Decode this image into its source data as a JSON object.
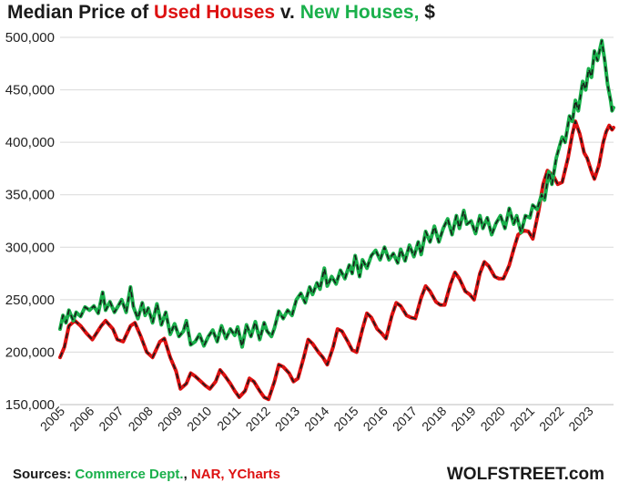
{
  "title": {
    "prefix": "Median Price of ",
    "used": "Used Houses",
    "mid": " v. ",
    "new": "New Houses,",
    "suffix": " $"
  },
  "footer": {
    "sources_label": "Sources: ",
    "source_1": "Commerce Dept.",
    "source_sep": ", ",
    "source_2": "NAR, YCharts",
    "brand": "WOLFSTREET.com"
  },
  "colors": {
    "used": "#dd1111",
    "new": "#1ab04b",
    "black": "#1a1a1a",
    "grid": "#d9d9d9"
  },
  "chart_data": {
    "type": "line",
    "title": "Median Price of Used Houses v. New Houses, $",
    "xlabel": "",
    "ylabel": "",
    "ylim": [
      150000,
      500000
    ],
    "xlim": [
      2005.0,
      2023.85
    ],
    "yticks": [
      150000,
      200000,
      250000,
      300000,
      350000,
      400000,
      450000,
      500000
    ],
    "ytick_labels": [
      "150,000",
      "200,000",
      "250,000",
      "300,000",
      "350,000",
      "400,000",
      "450,000",
      "500,000"
    ],
    "xticks": [
      "2005",
      "2006",
      "2007",
      "2008",
      "2009",
      "2010",
      "2011",
      "2012",
      "2013",
      "2014",
      "2015",
      "2016",
      "2017",
      "2018",
      "2019",
      "2020",
      "2021",
      "2022",
      "2023"
    ],
    "grid": "horizontal",
    "series": [
      {
        "name": "Used Houses",
        "color": "#dd1111",
        "points": [
          [
            2005.0,
            195000
          ],
          [
            2005.15,
            205000
          ],
          [
            2005.3,
            225000
          ],
          [
            2005.5,
            230000
          ],
          [
            2005.7,
            225000
          ],
          [
            2005.9,
            218000
          ],
          [
            2006.1,
            212000
          ],
          [
            2006.4,
            225000
          ],
          [
            2006.55,
            230000
          ],
          [
            2006.8,
            222000
          ],
          [
            2006.95,
            212000
          ],
          [
            2007.15,
            210000
          ],
          [
            2007.4,
            225000
          ],
          [
            2007.55,
            228000
          ],
          [
            2007.75,
            215000
          ],
          [
            2007.95,
            200000
          ],
          [
            2008.15,
            195000
          ],
          [
            2008.4,
            210000
          ],
          [
            2008.55,
            213000
          ],
          [
            2008.75,
            195000
          ],
          [
            2008.95,
            182000
          ],
          [
            2009.1,
            165000
          ],
          [
            2009.3,
            170000
          ],
          [
            2009.45,
            180000
          ],
          [
            2009.6,
            177000
          ],
          [
            2009.8,
            172000
          ],
          [
            2009.95,
            168000
          ],
          [
            2010.1,
            165000
          ],
          [
            2010.3,
            172000
          ],
          [
            2010.45,
            183000
          ],
          [
            2010.6,
            178000
          ],
          [
            2010.8,
            170000
          ],
          [
            2010.95,
            163000
          ],
          [
            2011.1,
            157000
          ],
          [
            2011.3,
            163000
          ],
          [
            2011.45,
            175000
          ],
          [
            2011.6,
            172000
          ],
          [
            2011.8,
            163000
          ],
          [
            2011.95,
            157000
          ],
          [
            2012.1,
            155000
          ],
          [
            2012.3,
            172000
          ],
          [
            2012.45,
            188000
          ],
          [
            2012.6,
            186000
          ],
          [
            2012.8,
            180000
          ],
          [
            2012.95,
            172000
          ],
          [
            2013.1,
            175000
          ],
          [
            2013.3,
            195000
          ],
          [
            2013.45,
            212000
          ],
          [
            2013.6,
            208000
          ],
          [
            2013.8,
            200000
          ],
          [
            2013.95,
            195000
          ],
          [
            2014.1,
            188000
          ],
          [
            2014.3,
            205000
          ],
          [
            2014.45,
            222000
          ],
          [
            2014.6,
            220000
          ],
          [
            2014.8,
            210000
          ],
          [
            2014.95,
            202000
          ],
          [
            2015.1,
            200000
          ],
          [
            2015.3,
            222000
          ],
          [
            2015.45,
            237000
          ],
          [
            2015.6,
            233000
          ],
          [
            2015.8,
            222000
          ],
          [
            2015.95,
            218000
          ],
          [
            2016.1,
            213000
          ],
          [
            2016.3,
            235000
          ],
          [
            2016.45,
            247000
          ],
          [
            2016.6,
            244000
          ],
          [
            2016.8,
            235000
          ],
          [
            2016.95,
            233000
          ],
          [
            2017.1,
            232000
          ],
          [
            2017.3,
            252000
          ],
          [
            2017.45,
            263000
          ],
          [
            2017.6,
            258000
          ],
          [
            2017.8,
            248000
          ],
          [
            2017.95,
            245000
          ],
          [
            2018.1,
            245000
          ],
          [
            2018.3,
            265000
          ],
          [
            2018.45,
            276000
          ],
          [
            2018.6,
            270000
          ],
          [
            2018.8,
            258000
          ],
          [
            2018.95,
            255000
          ],
          [
            2019.1,
            250000
          ],
          [
            2019.3,
            275000
          ],
          [
            2019.45,
            286000
          ],
          [
            2019.6,
            282000
          ],
          [
            2019.8,
            272000
          ],
          [
            2019.95,
            270000
          ],
          [
            2020.1,
            270000
          ],
          [
            2020.3,
            283000
          ],
          [
            2020.45,
            298000
          ],
          [
            2020.6,
            312000
          ],
          [
            2020.8,
            316000
          ],
          [
            2020.95,
            315000
          ],
          [
            2021.1,
            308000
          ],
          [
            2021.3,
            335000
          ],
          [
            2021.45,
            360000
          ],
          [
            2021.6,
            373000
          ],
          [
            2021.8,
            368000
          ],
          [
            2021.95,
            360000
          ],
          [
            2022.1,
            362000
          ],
          [
            2022.3,
            385000
          ],
          [
            2022.45,
            408000
          ],
          [
            2022.55,
            420000
          ],
          [
            2022.7,
            408000
          ],
          [
            2022.85,
            390000
          ],
          [
            2022.95,
            385000
          ],
          [
            2023.1,
            372000
          ],
          [
            2023.2,
            365000
          ],
          [
            2023.35,
            378000
          ],
          [
            2023.5,
            400000
          ],
          [
            2023.6,
            410000
          ],
          [
            2023.7,
            416000
          ],
          [
            2023.8,
            412000
          ],
          [
            2023.85,
            414000
          ]
        ]
      },
      {
        "name": "New Houses",
        "color": "#1ab04b",
        "points": [
          [
            2005.0,
            222000
          ],
          [
            2005.1,
            235000
          ],
          [
            2005.2,
            228000
          ],
          [
            2005.3,
            240000
          ],
          [
            2005.45,
            230000
          ],
          [
            2005.55,
            238000
          ],
          [
            2005.7,
            234000
          ],
          [
            2005.85,
            243000
          ],
          [
            2006.0,
            240000
          ],
          [
            2006.15,
            244000
          ],
          [
            2006.3,
            237000
          ],
          [
            2006.45,
            257000
          ],
          [
            2006.55,
            240000
          ],
          [
            2006.7,
            248000
          ],
          [
            2006.85,
            238000
          ],
          [
            2007.0,
            245000
          ],
          [
            2007.1,
            250000
          ],
          [
            2007.25,
            238000
          ],
          [
            2007.4,
            262000
          ],
          [
            2007.5,
            243000
          ],
          [
            2007.65,
            232000
          ],
          [
            2007.8,
            247000
          ],
          [
            2007.9,
            235000
          ],
          [
            2008.0,
            242000
          ],
          [
            2008.15,
            228000
          ],
          [
            2008.3,
            246000
          ],
          [
            2008.45,
            226000
          ],
          [
            2008.6,
            238000
          ],
          [
            2008.75,
            217000
          ],
          [
            2008.9,
            227000
          ],
          [
            2009.05,
            215000
          ],
          [
            2009.2,
            220000
          ],
          [
            2009.3,
            230000
          ],
          [
            2009.45,
            207000
          ],
          [
            2009.6,
            210000
          ],
          [
            2009.75,
            217000
          ],
          [
            2009.9,
            206000
          ],
          [
            2010.05,
            215000
          ],
          [
            2010.2,
            221000
          ],
          [
            2010.35,
            210000
          ],
          [
            2010.5,
            225000
          ],
          [
            2010.65,
            213000
          ],
          [
            2010.8,
            222000
          ],
          [
            2010.95,
            216000
          ],
          [
            2011.05,
            224000
          ],
          [
            2011.2,
            205000
          ],
          [
            2011.35,
            226000
          ],
          [
            2011.5,
            215000
          ],
          [
            2011.65,
            229000
          ],
          [
            2011.8,
            212000
          ],
          [
            2011.95,
            228000
          ],
          [
            2012.05,
            220000
          ],
          [
            2012.2,
            215000
          ],
          [
            2012.3,
            223000
          ],
          [
            2012.45,
            239000
          ],
          [
            2012.6,
            232000
          ],
          [
            2012.75,
            240000
          ],
          [
            2012.9,
            235000
          ],
          [
            2013.05,
            250000
          ],
          [
            2013.2,
            256000
          ],
          [
            2013.35,
            247000
          ],
          [
            2013.5,
            262000
          ],
          [
            2013.6,
            255000
          ],
          [
            2013.75,
            266000
          ],
          [
            2013.85,
            260000
          ],
          [
            2014.0,
            280000
          ],
          [
            2014.1,
            263000
          ],
          [
            2014.25,
            272000
          ],
          [
            2014.4,
            265000
          ],
          [
            2014.55,
            278000
          ],
          [
            2014.7,
            270000
          ],
          [
            2014.85,
            283000
          ],
          [
            2014.95,
            275000
          ],
          [
            2015.05,
            292000
          ],
          [
            2015.2,
            272000
          ],
          [
            2015.3,
            288000
          ],
          [
            2015.45,
            280000
          ],
          [
            2015.6,
            292000
          ],
          [
            2015.75,
            297000
          ],
          [
            2015.9,
            288000
          ],
          [
            2016.05,
            300000
          ],
          [
            2016.2,
            288000
          ],
          [
            2016.35,
            294000
          ],
          [
            2016.5,
            285000
          ],
          [
            2016.6,
            298000
          ],
          [
            2016.75,
            287000
          ],
          [
            2016.9,
            302000
          ],
          [
            2017.05,
            291000
          ],
          [
            2017.2,
            305000
          ],
          [
            2017.3,
            293000
          ],
          [
            2017.45,
            315000
          ],
          [
            2017.6,
            305000
          ],
          [
            2017.75,
            320000
          ],
          [
            2017.9,
            305000
          ],
          [
            2018.05,
            318000
          ],
          [
            2018.2,
            327000
          ],
          [
            2018.35,
            312000
          ],
          [
            2018.5,
            330000
          ],
          [
            2018.6,
            318000
          ],
          [
            2018.75,
            335000
          ],
          [
            2018.85,
            322000
          ],
          [
            2019.0,
            325000
          ],
          [
            2019.15,
            313000
          ],
          [
            2019.3,
            330000
          ],
          [
            2019.4,
            318000
          ],
          [
            2019.55,
            328000
          ],
          [
            2019.7,
            312000
          ],
          [
            2019.85,
            323000
          ],
          [
            2020.0,
            330000
          ],
          [
            2020.15,
            318000
          ],
          [
            2020.3,
            337000
          ],
          [
            2020.45,
            322000
          ],
          [
            2020.55,
            330000
          ],
          [
            2020.7,
            314000
          ],
          [
            2020.85,
            330000
          ],
          [
            2021.0,
            328000
          ],
          [
            2021.1,
            340000
          ],
          [
            2021.25,
            336000
          ],
          [
            2021.4,
            350000
          ],
          [
            2021.5,
            345000
          ],
          [
            2021.65,
            372000
          ],
          [
            2021.75,
            360000
          ],
          [
            2021.9,
            385000
          ],
          [
            2022.0,
            395000
          ],
          [
            2022.1,
            405000
          ],
          [
            2022.2,
            400000
          ],
          [
            2022.35,
            425000
          ],
          [
            2022.45,
            420000
          ],
          [
            2022.55,
            440000
          ],
          [
            2022.65,
            430000
          ],
          [
            2022.8,
            458000
          ],
          [
            2022.9,
            450000
          ],
          [
            2023.0,
            470000
          ],
          [
            2023.1,
            462000
          ],
          [
            2023.2,
            487000
          ],
          [
            2023.3,
            478000
          ],
          [
            2023.45,
            497000
          ],
          [
            2023.55,
            478000
          ],
          [
            2023.65,
            455000
          ],
          [
            2023.75,
            440000
          ],
          [
            2023.8,
            430000
          ],
          [
            2023.85,
            433000
          ]
        ]
      }
    ]
  }
}
